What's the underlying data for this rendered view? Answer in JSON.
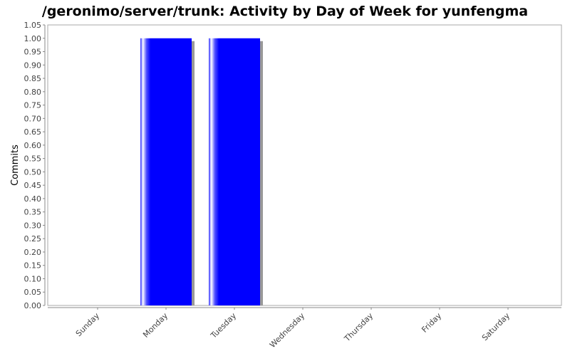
{
  "chart_data": {
    "type": "bar",
    "title": "/geronimo/server/trunk: Activity by Day of Week for yunfengma",
    "xlabel": "",
    "ylabel": "Commits",
    "categories": [
      "Sunday",
      "Monday",
      "Tuesday",
      "Wednesday",
      "Thursday",
      "Friday",
      "Saturday"
    ],
    "values": [
      0,
      1,
      1,
      0,
      0,
      0,
      0
    ],
    "ylim": [
      0,
      1.05
    ],
    "yticks": [
      "0.00",
      "0.05",
      "0.10",
      "0.15",
      "0.20",
      "0.25",
      "0.30",
      "0.35",
      "0.40",
      "0.45",
      "0.50",
      "0.55",
      "0.60",
      "0.65",
      "0.70",
      "0.75",
      "0.80",
      "0.85",
      "0.90",
      "0.95",
      "1.00",
      "1.05"
    ],
    "grid": false,
    "legend": "none",
    "bar_color": "#0000ff",
    "shadow_color": "#999999",
    "plot_border_color": "#aaaaaa"
  }
}
